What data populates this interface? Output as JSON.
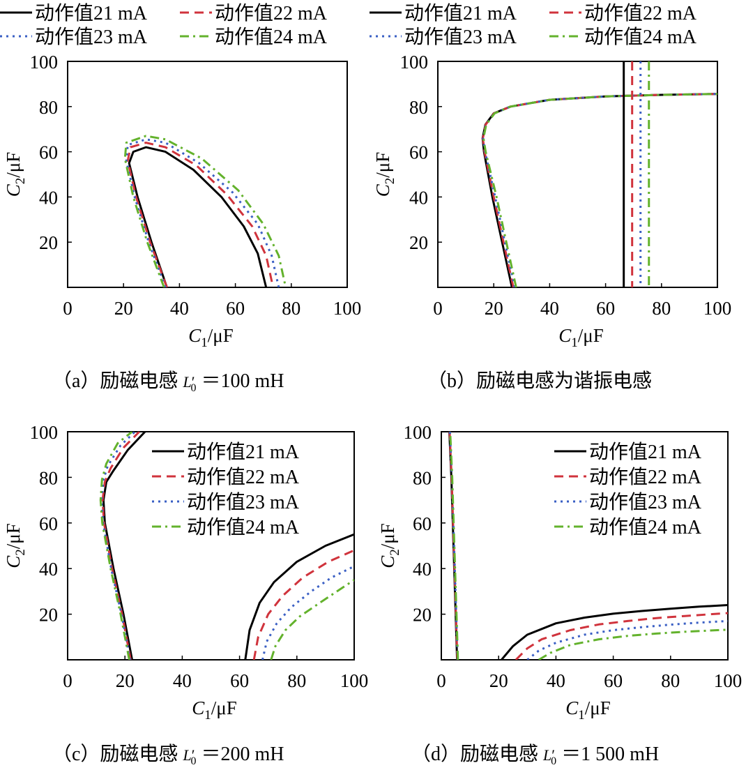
{
  "series_styles": [
    {
      "color": "#000000",
      "dash": "none",
      "width": 3
    },
    {
      "color": "#d0333c",
      "dash": "13,8",
      "width": 3
    },
    {
      "color": "#3a5fc4",
      "dash": "3,6",
      "width": 3
    },
    {
      "color": "#63b22c",
      "dash": "13,6,3,6",
      "width": 3
    }
  ],
  "chart_data": [
    {
      "type": "line",
      "caption": "（a）励磁电感 L′0 ＝100 mH",
      "caption_prefix": "（a）励磁电感 ",
      "caption_symbol": "L",
      "caption_prime": "′",
      "caption_sub": "0",
      "caption_suffix": " ＝100 mH",
      "xlabel": "C1/μF",
      "xlabel_main": "C",
      "xlabel_sub": "1",
      "xlabel_unit": "/μF",
      "ylabel": "C2/μF",
      "ylabel_main": "C",
      "ylabel_sub": "2",
      "ylabel_unit": "/μF",
      "xlim": [
        0,
        100
      ],
      "ylim": [
        0,
        100
      ],
      "xticks": [
        "0",
        "20",
        "40",
        "60",
        "80",
        "100"
      ],
      "yticks": [
        "20",
        "40",
        "60",
        "80",
        "100"
      ],
      "legend_position": "top-outside",
      "series": [
        {
          "name": "动作值21 mA",
          "x": [
            35.5,
            30,
            25,
            22,
            23.5,
            28,
            35,
            45,
            55,
            63,
            68,
            71
          ],
          "y": [
            0,
            20,
            40,
            55,
            60,
            62,
            60,
            52,
            40,
            27,
            15,
            0
          ]
        },
        {
          "name": "动作值22 mA",
          "x": [
            35.5,
            29.5,
            24.5,
            21.5,
            22.5,
            28,
            35,
            46,
            57,
            66,
            71,
            73.5
          ],
          "y": [
            0,
            20,
            40,
            56,
            62,
            64,
            62,
            54,
            41,
            27,
            14,
            0
          ]
        },
        {
          "name": "动作值23 mA",
          "x": [
            35,
            29,
            24,
            21,
            21.5,
            28,
            35,
            47,
            59,
            68,
            73,
            75.5
          ],
          "y": [
            0,
            20,
            40,
            56,
            63,
            65.5,
            64,
            55,
            42,
            28,
            14,
            0
          ]
        },
        {
          "name": "动作值24 mA",
          "x": [
            34.5,
            28.5,
            23.5,
            20.5,
            21,
            28,
            35,
            48,
            61,
            70,
            75.5,
            78
          ],
          "y": [
            0,
            20,
            40,
            57,
            64,
            67,
            65.5,
            57,
            43,
            28,
            14,
            0
          ]
        }
      ]
    },
    {
      "type": "line",
      "caption": "（b）励磁电感为谐振电感",
      "caption_full": "（b）励磁电感为谐振电感",
      "xlabel": "C1/μF",
      "xlabel_main": "C",
      "xlabel_sub": "1",
      "xlabel_unit": "/μF",
      "ylabel": "C2/μF",
      "ylabel_main": "C",
      "ylabel_sub": "2",
      "ylabel_unit": "/μF",
      "xlim": [
        0,
        100
      ],
      "ylim": [
        0,
        100
      ],
      "xticks": [
        "0",
        "20",
        "40",
        "60",
        "80",
        "100"
      ],
      "yticks": [
        "20",
        "40",
        "60",
        "80",
        "100"
      ],
      "legend_position": "top-outside",
      "vertical_asymptotes": [
        66.5,
        69.5,
        72.5,
        75.5
      ],
      "series": [
        {
          "name": "动作值21 mA",
          "x": [
            26.5,
            23,
            19.5,
            16.5,
            16,
            17,
            20,
            26,
            40,
            60,
            80,
            100
          ],
          "y": [
            0,
            20,
            40,
            60,
            66,
            72,
            77,
            80,
            83,
            84.5,
            85.2,
            85.6
          ]
        },
        {
          "name": "动作值22 mA",
          "x": [
            27,
            23.5,
            20,
            16.7,
            16.1,
            17.1,
            20.1,
            26,
            40,
            60,
            80,
            100
          ],
          "y": [
            0,
            20,
            40,
            60,
            66,
            72,
            77,
            80,
            83,
            84.5,
            85.2,
            85.6
          ]
        },
        {
          "name": "动作值23 mA",
          "x": [
            27.5,
            24,
            20.5,
            16.9,
            16.2,
            17.2,
            20.2,
            26,
            40,
            60,
            80,
            100
          ],
          "y": [
            0,
            20,
            40,
            60,
            66,
            72,
            77,
            80,
            83,
            84.5,
            85.2,
            85.6
          ]
        },
        {
          "name": "动作值24 mA",
          "x": [
            28,
            24.5,
            21,
            17.1,
            16.3,
            17.3,
            20.3,
            26,
            40,
            60,
            80,
            100
          ],
          "y": [
            0,
            20,
            40,
            60,
            66,
            72,
            77,
            80,
            83,
            84.5,
            85.2,
            85.6
          ]
        }
      ]
    },
    {
      "type": "line",
      "caption": "（c）励磁电感 L′0 ＝200 mH",
      "caption_prefix": "（c）励磁电感 ",
      "caption_symbol": "L",
      "caption_prime": "′",
      "caption_sub": "0",
      "caption_suffix": " ＝200 mH",
      "xlabel": "C1/μF",
      "xlabel_main": "C",
      "xlabel_sub": "1",
      "xlabel_unit": "/μF",
      "ylabel": "C2/μF",
      "ylabel_main": "C",
      "ylabel_sub": "2",
      "ylabel_unit": "/μF",
      "xlim": [
        0,
        100
      ],
      "ylim": [
        0,
        100
      ],
      "xticks": [
        "0",
        "20",
        "40",
        "60",
        "80",
        "100"
      ],
      "yticks": [
        "20",
        "40",
        "60",
        "80",
        "100"
      ],
      "legend_position": "upper-right-inside",
      "series": [
        {
          "name": "动作值21 mA",
          "x": [
            22.5,
            19.5,
            16,
            13,
            12.5,
            13.5,
            16,
            21,
            27
          ],
          "y": [
            0,
            20,
            40,
            60,
            70,
            78,
            83,
            92,
            100
          ]
        },
        {
          "name": "动作值22 mA",
          "x": [
            22,
            19,
            15.5,
            12.7,
            12.2,
            13,
            15,
            19.5,
            25
          ],
          "y": [
            0,
            20,
            40,
            60,
            70,
            78,
            84,
            93,
            100
          ]
        },
        {
          "name": "动作值23 mA",
          "x": [
            21.8,
            18.8,
            15.2,
            12.4,
            11.8,
            12.5,
            14,
            18.5,
            23.5
          ],
          "y": [
            0,
            20,
            40,
            60,
            70,
            79,
            85,
            94,
            100
          ]
        },
        {
          "name": "动作值24 mA",
          "x": [
            21.5,
            18.5,
            15,
            12.1,
            11.5,
            12,
            13.5,
            17.5,
            22.5
          ],
          "y": [
            0,
            20,
            40,
            60,
            70,
            79,
            86,
            95,
            100
          ]
        }
      ],
      "series_b": [
        {
          "name": "动作值21 mA",
          "x": [
            62,
            63.5,
            67,
            72,
            80,
            90,
            100
          ],
          "y": [
            0,
            13,
            25,
            34,
            43,
            50,
            55
          ]
        },
        {
          "name": "动作值22 mA",
          "x": [
            65,
            66.5,
            70,
            75,
            82,
            91,
            100
          ],
          "y": [
            0,
            10,
            20,
            28,
            36,
            43,
            48
          ]
        },
        {
          "name": "动作值23 mA",
          "x": [
            68,
            69.5,
            73,
            78,
            85,
            92,
            100
          ],
          "y": [
            0,
            8,
            16,
            23,
            30,
            36,
            41
          ]
        },
        {
          "name": "动作值24 mA",
          "x": [
            71,
            72.5,
            76,
            81,
            88,
            94,
            100
          ],
          "y": [
            0,
            6,
            13,
            19,
            25,
            30,
            35
          ]
        }
      ]
    },
    {
      "type": "line",
      "caption": "（d）励磁电感 L′0 ＝1 500 mH",
      "caption_prefix": "（d）励磁电感 ",
      "caption_symbol": "L",
      "caption_prime": "′",
      "caption_sub": "0",
      "caption_suffix": " ＝1 500 mH",
      "xlabel": "C1/μF",
      "xlabel_main": "C",
      "xlabel_sub": "1",
      "xlabel_unit": "/μF",
      "ylabel": "C2/μF",
      "ylabel_main": "C",
      "ylabel_sub": "2",
      "ylabel_unit": "/μF",
      "xlim": [
        0,
        100
      ],
      "ylim": [
        0,
        100
      ],
      "xticks": [
        "0",
        "20",
        "40",
        "60",
        "80",
        "100"
      ],
      "yticks": [
        "20",
        "40",
        "60",
        "80",
        "100"
      ],
      "legend_position": "upper-right-inside",
      "series": [
        {
          "name": "动作值21 mA",
          "x": [
            5.5,
            4.5,
            3.5,
            2.8
          ],
          "y": [
            0,
            40,
            80,
            100
          ]
        },
        {
          "name": "动作值22 mA",
          "x": [
            5.6,
            4.6,
            3.6,
            2.9
          ],
          "y": [
            0,
            40,
            80,
            100
          ]
        },
        {
          "name": "动作值23 mA",
          "x": [
            5.7,
            4.7,
            3.7,
            3.0
          ],
          "y": [
            0,
            40,
            80,
            100
          ]
        },
        {
          "name": "动作值24 mA",
          "x": [
            5.8,
            4.8,
            3.8,
            3.1
          ],
          "y": [
            0,
            40,
            80,
            100
          ]
        }
      ],
      "series_b": [
        {
          "name": "动作值21 mA",
          "x": [
            21,
            25,
            30,
            40,
            50,
            60,
            70,
            80,
            90,
            100
          ],
          "y": [
            0,
            6,
            11,
            16,
            18.5,
            20.2,
            21.4,
            22.4,
            23.3,
            24
          ]
        },
        {
          "name": "动作值22 mA",
          "x": [
            26,
            30,
            35,
            45,
            55,
            65,
            75,
            85,
            100
          ],
          "y": [
            0,
            5,
            9,
            13,
            15.5,
            17,
            18.3,
            19.2,
            20.5
          ]
        },
        {
          "name": "动作值23 mA",
          "x": [
            30,
            34,
            40,
            50,
            60,
            70,
            80,
            90,
            100
          ],
          "y": [
            0,
            4,
            7.5,
            11,
            13,
            14.3,
            15.4,
            16.3,
            17
          ]
        },
        {
          "name": "动作值24 mA",
          "x": [
            34,
            38,
            45,
            55,
            65,
            75,
            85,
            100
          ],
          "y": [
            0,
            3,
            6.5,
            9,
            10.5,
            11.5,
            12.3,
            13.2
          ]
        }
      ]
    }
  ]
}
